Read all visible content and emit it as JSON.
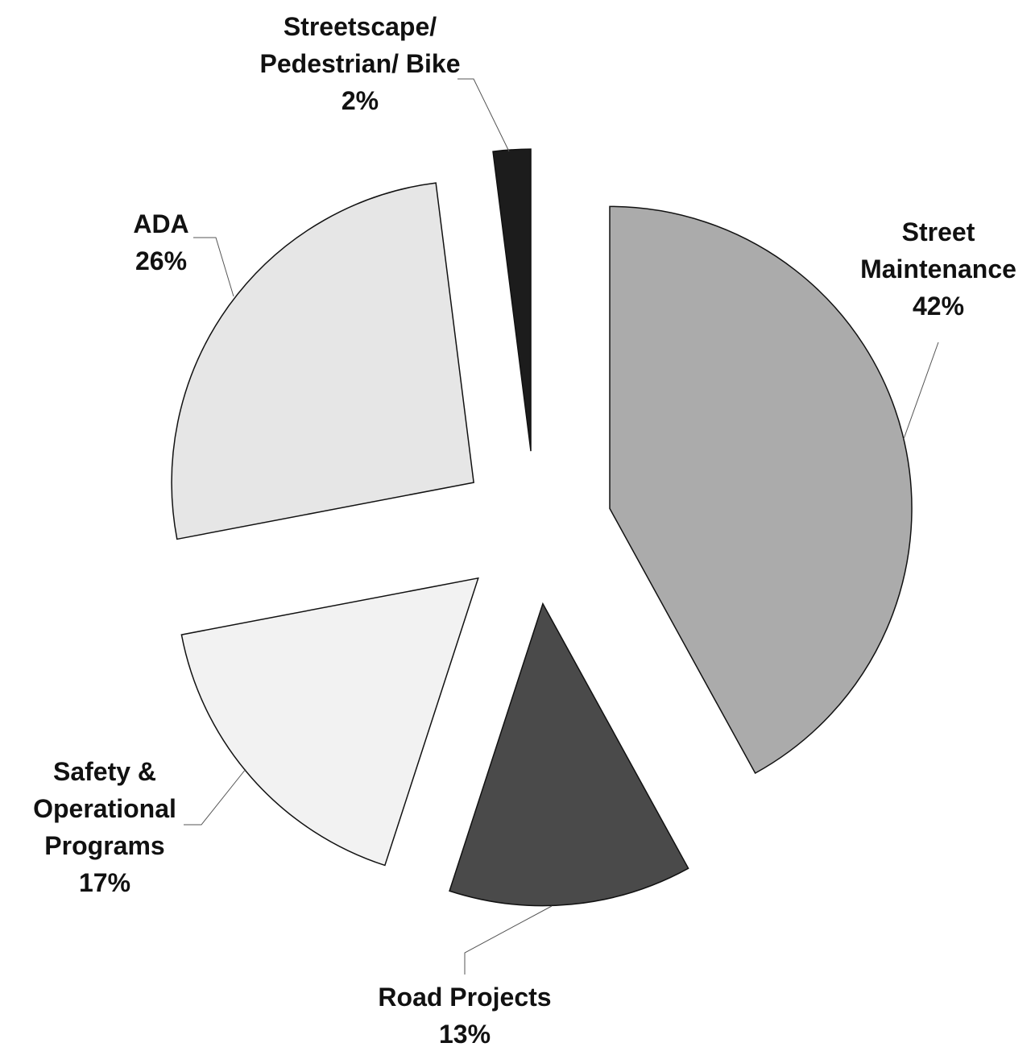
{
  "chart_data": {
    "type": "pie",
    "categories": [
      "Street Maintenance",
      "Road Projects",
      "Safety & Operational Programs",
      "ADA",
      "Streetscape/ Pedestrian/ Bike"
    ],
    "values": [
      42,
      13,
      17,
      26,
      2
    ],
    "value_labels": [
      "42%",
      "13%",
      "17%",
      "26%",
      "2%"
    ],
    "colors": [
      "#ababab",
      "#4a4a4a",
      "#f2f2f2",
      "#e6e6e6",
      "#1c1c1c"
    ],
    "exploded": true
  }
}
